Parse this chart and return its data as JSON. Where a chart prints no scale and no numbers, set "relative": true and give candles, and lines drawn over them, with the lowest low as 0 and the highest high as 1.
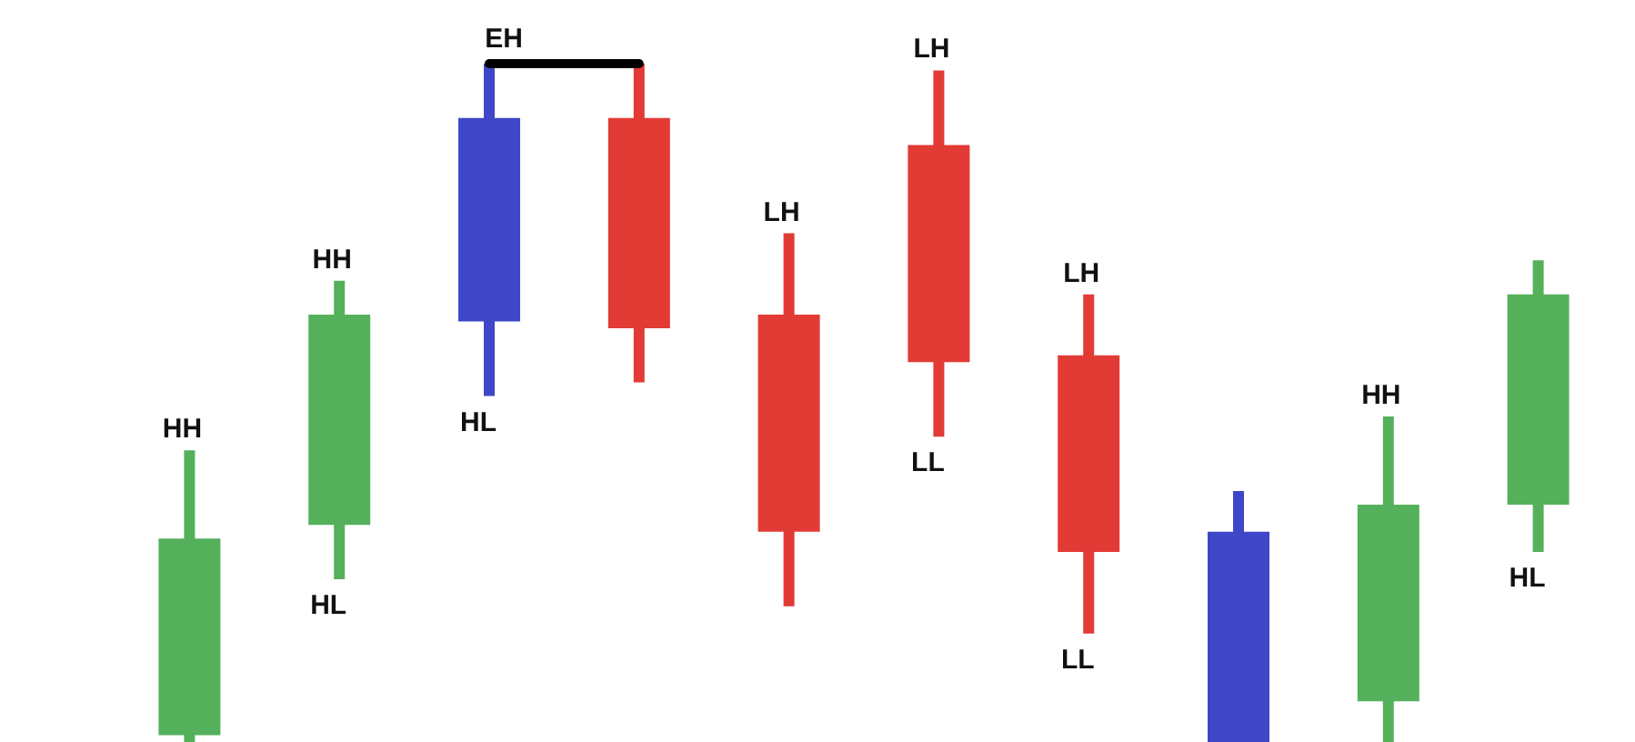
{
  "chart_data": {
    "type": "candlestick",
    "relative": true,
    "categories": [
      null,
      null,
      null,
      null,
      null,
      null,
      null,
      null,
      null,
      null
    ],
    "ohlc": [
      [
        0.01,
        0.43,
        0,
        0.3
      ],
      [
        0.32,
        0.68,
        0.24,
        0.63
      ],
      [
        0.62,
        1,
        0.51,
        0.92
      ],
      [
        0.92,
        1,
        0.53,
        0.61
      ],
      [
        0.63,
        0.75,
        0.2,
        0.31
      ],
      [
        0.88,
        0.99,
        0.45,
        0.56
      ],
      [
        0.57,
        0.66,
        0.16,
        0.28
      ],
      [
        0,
        0.37,
        0,
        0.31
      ],
      [
        0.06,
        0.48,
        0,
        0.35
      ],
      [
        0.35,
        0.71,
        0.28,
        0.66
      ]
    ],
    "colors": [
      "#55b05c",
      "#55b05c",
      "#3f47c8",
      "#e23a35",
      "#e23a35",
      "#e23a35",
      "#e23a35",
      "#3f47c8",
      "#55b05c",
      "#55b05c"
    ],
    "annotations": [
      {
        "text": "HH",
        "y": 0.43
      },
      {
        "text": "HH",
        "y": 0.68
      },
      {
        "text": "HL",
        "y": 0.24
      },
      {
        "text": "EH",
        "y": 1
      },
      {
        "text": "HL",
        "y": 0.51
      },
      {
        "text": "LH",
        "y": 0.75
      },
      {
        "text": "LH",
        "y": 0.99
      },
      {
        "text": "LL",
        "y": 0.45
      },
      {
        "text": "LH",
        "y": 0.66
      },
      {
        "text": "LL",
        "y": 0.16
      },
      {
        "text": "HH",
        "y": 0.48
      },
      {
        "text": "HL",
        "y": 0.28
      }
    ]
  }
}
